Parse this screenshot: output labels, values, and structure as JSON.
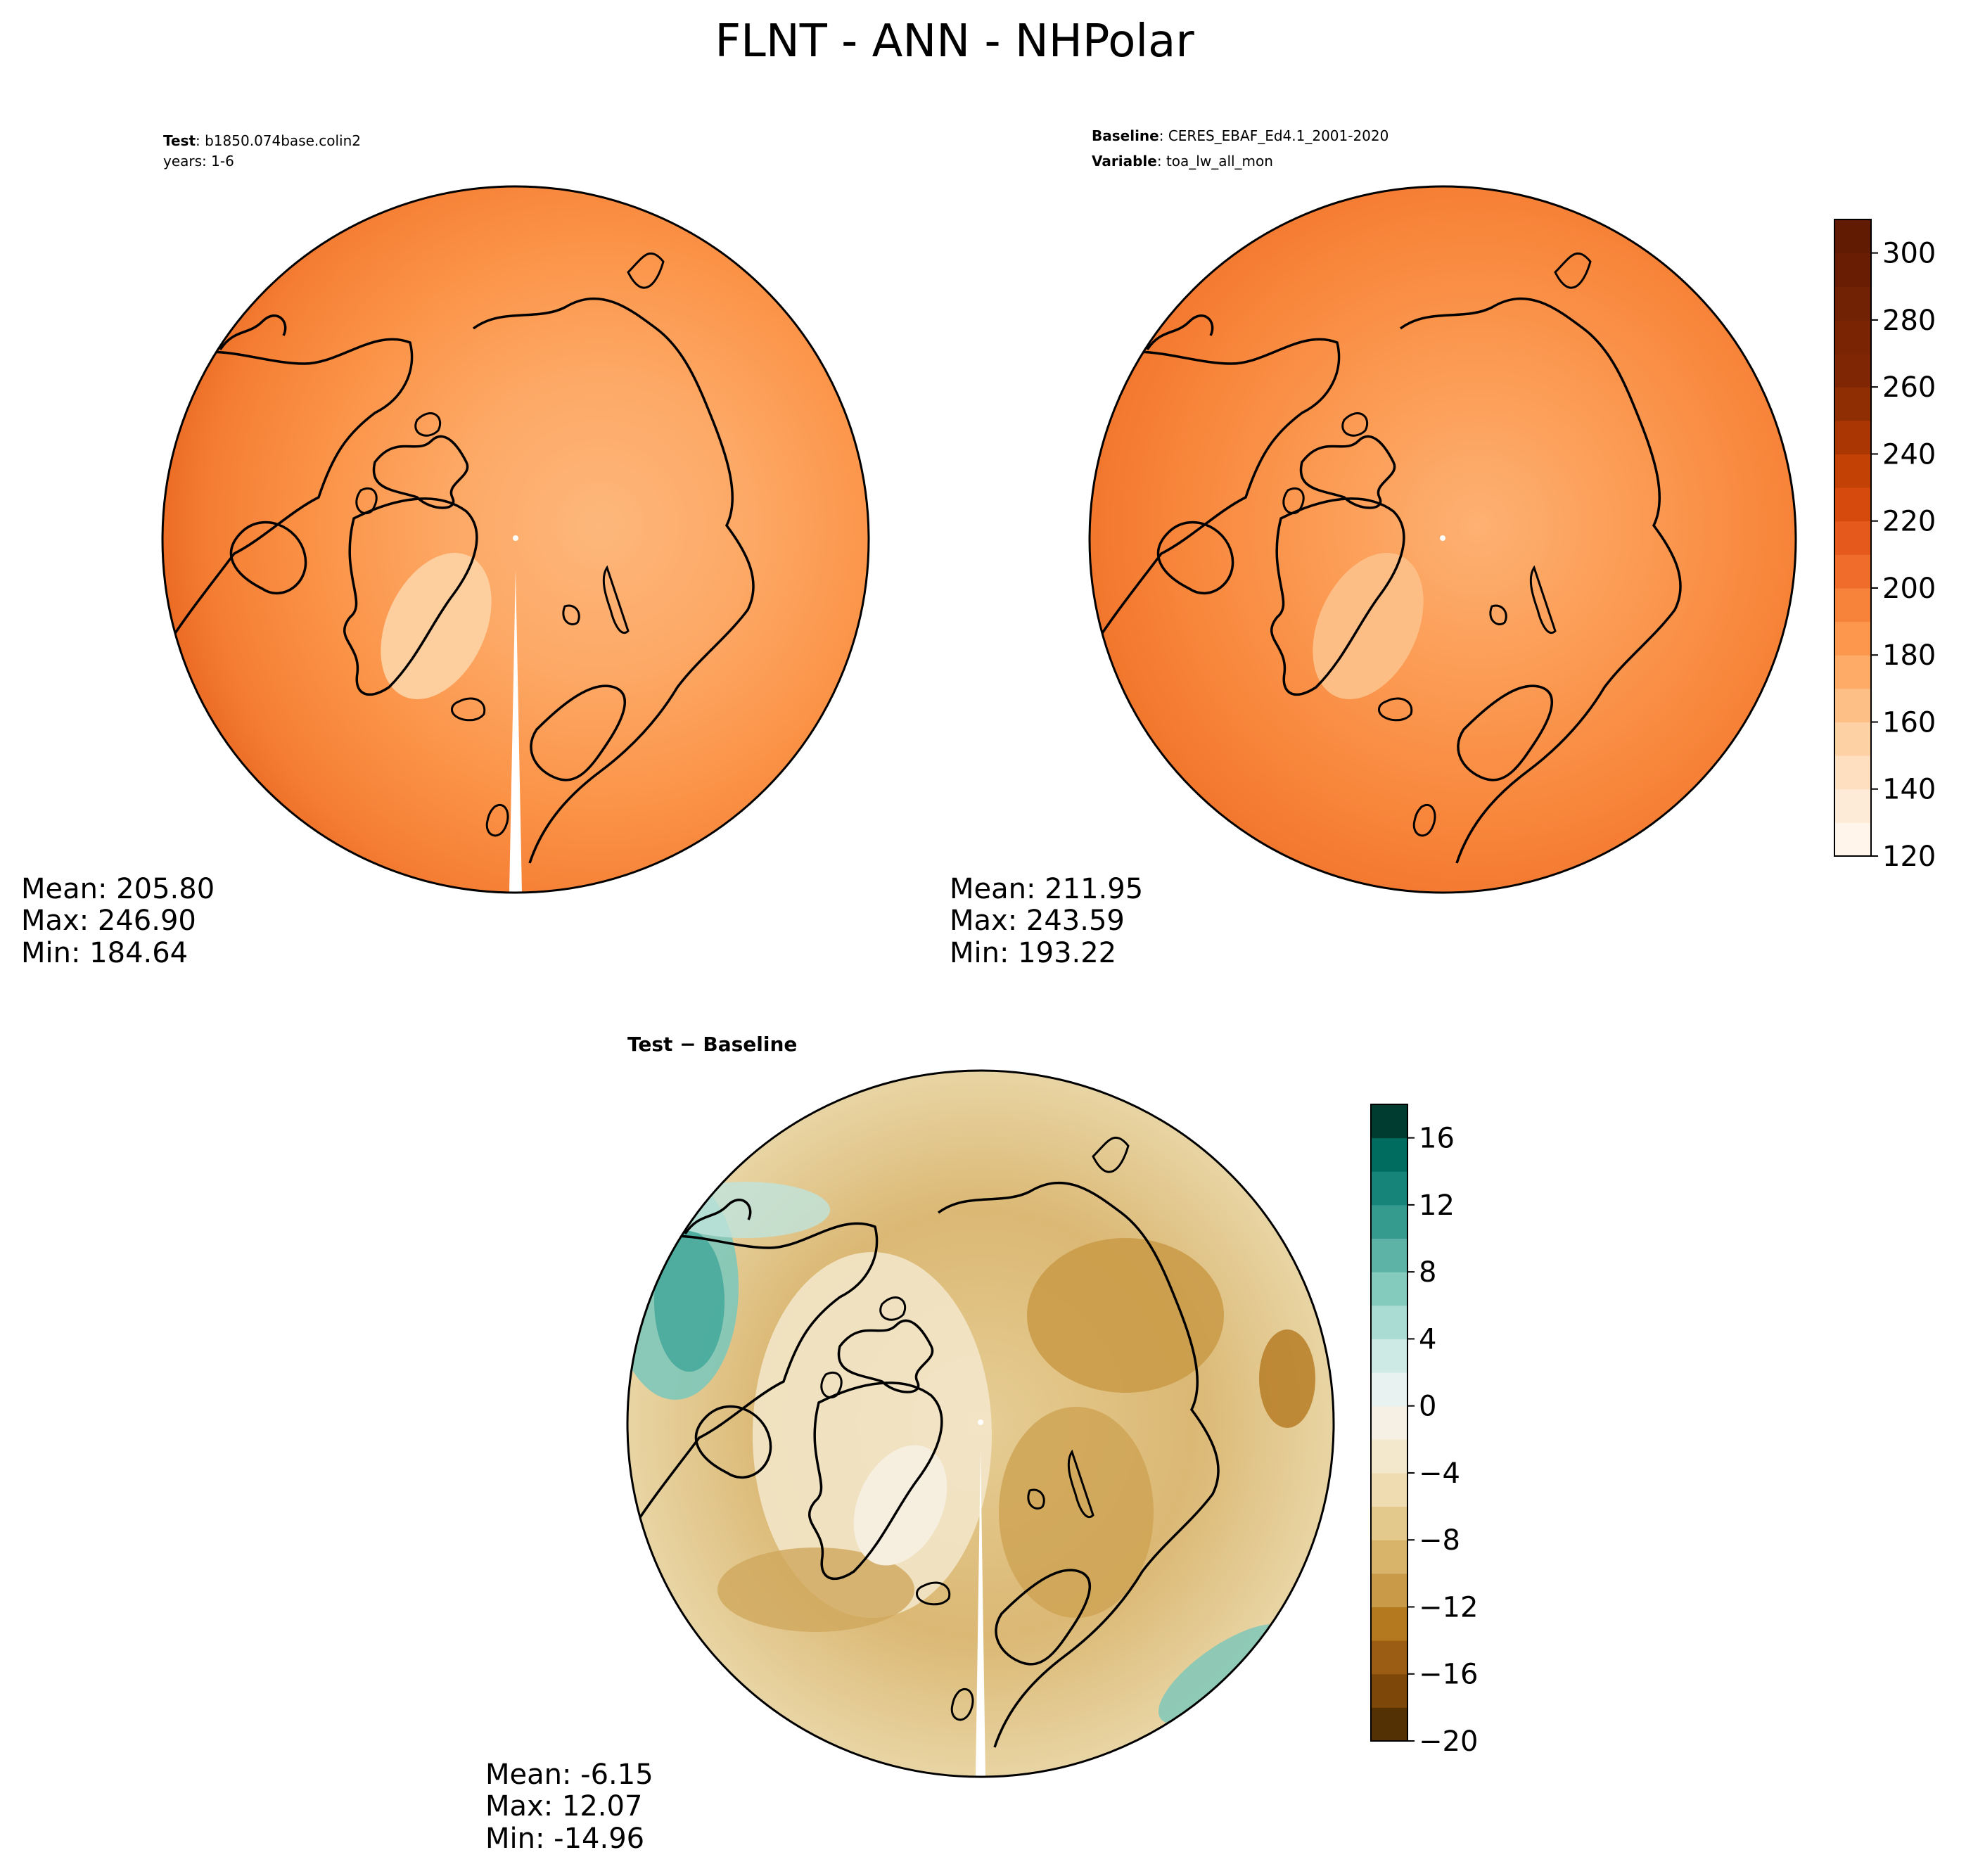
{
  "figure": {
    "title": "FLNT - ANN - NHPolar"
  },
  "chart_data": [
    {
      "type": "heatmap",
      "projection": "north-polar-stereographic",
      "header": {
        "line1_bold": "Test",
        "line1_rest": ": b1850.074base.colin2",
        "line2": "years: 1-6"
      },
      "stats": {
        "mean": "Mean: 205.80",
        "max": "Max: 246.90",
        "min": "Min: 184.64"
      },
      "colorbar": "shared-orange",
      "colormap": "Oranges"
    },
    {
      "type": "heatmap",
      "projection": "north-polar-stereographic",
      "header": {
        "line1_bold": "Baseline",
        "line1_rest": ": CERES_EBAF_Ed4.1_2001-2020",
        "line2_bold": "Variable",
        "line2_rest": ": toa_lw_all_mon"
      },
      "stats": {
        "mean": "Mean: 211.95",
        "max": "Max: 243.59",
        "min": "Min: 193.22"
      },
      "colorbar": {
        "range": [
          120,
          310
        ],
        "levels": 19,
        "tick_values": [
          120,
          140,
          160,
          180,
          200,
          220,
          240,
          260,
          280,
          300
        ],
        "tick_labels": [
          "120",
          "140",
          "160",
          "180",
          "200",
          "220",
          "240",
          "260",
          "280",
          "300"
        ],
        "colors": [
          "#fff5eb",
          "#feebd7",
          "#fee0c1",
          "#fdd1a4",
          "#fdbf86",
          "#fdab67",
          "#fd974d",
          "#f7823a",
          "#ef6c2b",
          "#e5591c",
          "#d74a0e",
          "#c44105",
          "#a93603",
          "#8f2d03",
          "#7f2704",
          "#7a2404",
          "#712104",
          "#691e03",
          "#611b03"
        ]
      },
      "colormap": "Oranges"
    },
    {
      "type": "heatmap",
      "projection": "north-polar-stereographic",
      "header": {
        "title_bold": "Test − Baseline"
      },
      "stats": {
        "mean": "Mean: -6.15",
        "max": "Max: 12.07",
        "min": "Min: -14.96"
      },
      "colorbar": {
        "range": [
          -20,
          18
        ],
        "levels": 19,
        "tick_values": [
          -20,
          -16,
          -12,
          -8,
          -4,
          0,
          4,
          8,
          12,
          16
        ],
        "tick_labels": [
          "−20",
          "−16",
          "−12",
          "−8",
          "−4",
          "0",
          "4",
          "8",
          "12",
          "16"
        ],
        "colors": [
          "#543005",
          "#7c4709",
          "#9a5d13",
          "#b4781f",
          "#c99a47",
          "#d8b36a",
          "#e4c98d",
          "#efdcb0",
          "#f4e8cc",
          "#f5f0e3",
          "#e8f3f1",
          "#cdeae5",
          "#abdcd4",
          "#84cabd",
          "#5db3a6",
          "#369b8f",
          "#178479",
          "#006c60",
          "#003c30"
        ]
      },
      "colormap": "BrBG"
    }
  ]
}
